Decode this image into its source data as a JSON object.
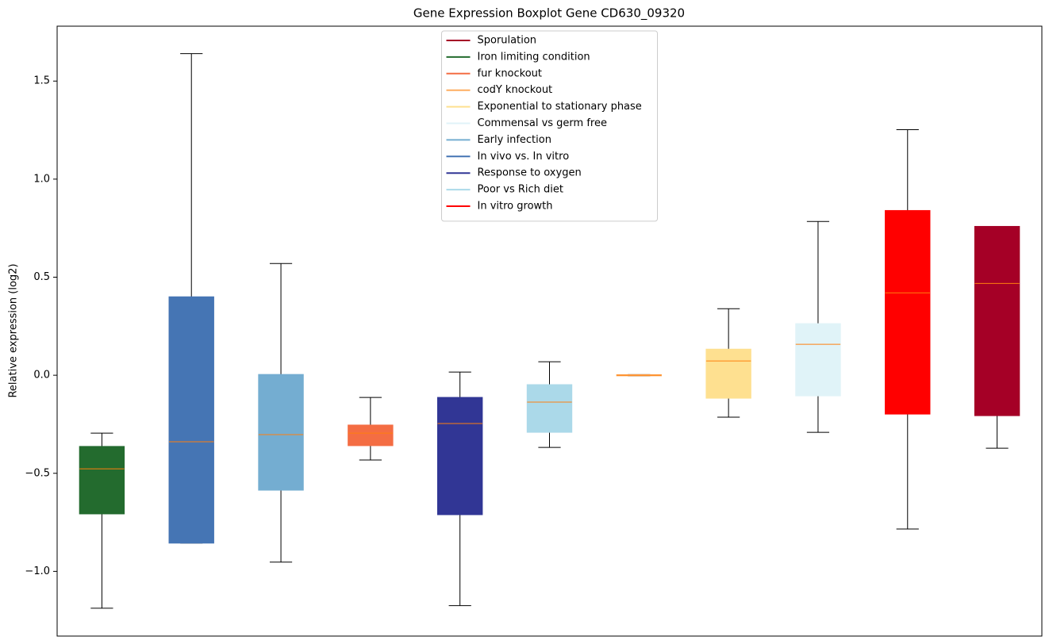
{
  "chart_data": {
    "type": "boxplot",
    "title": "Gene Expression Boxplot Gene CD630_09320",
    "y_label": "Relative expression (log2)",
    "xlim": [
      0.5,
      11.5
    ],
    "ylim": [
      -1.33,
      1.78
    ],
    "yticks": [
      {
        "value": -1.0,
        "label": "−1.0"
      },
      {
        "value": -0.5,
        "label": "−0.5"
      },
      {
        "value": 0.0,
        "label": "0.0"
      },
      {
        "value": 0.5,
        "label": "0.5"
      },
      {
        "value": 1.0,
        "label": "1.0"
      },
      {
        "value": 1.5,
        "label": "1.5"
      }
    ],
    "grid": false,
    "legend_position": "upper center",
    "median_color": "#ff7f0e",
    "series": [
      {
        "name": "Sporulation",
        "color": "#a50026",
        "x": 11,
        "whislo": -0.372,
        "q1": -0.206,
        "med": 0.468,
        "q3": 0.759,
        "whishi": 0.759
      },
      {
        "name": "Iron limiting condition",
        "color": "#236b2e",
        "x": 1,
        "whislo": -1.188,
        "q1": -0.707,
        "med": -0.477,
        "q3": -0.363,
        "whishi": -0.295
      },
      {
        "name": "fur knockout",
        "color": "#f46d43",
        "x": 4,
        "whislo": -0.432,
        "q1": -0.359,
        "med": -0.295,
        "q3": -0.254,
        "whishi": -0.113
      },
      {
        "name": "codY knockout",
        "color": "#fdae61",
        "x": 7,
        "whislo": -0.003,
        "q1": -0.003,
        "med": 0.0,
        "q3": 0.003,
        "whishi": 0.003
      },
      {
        "name": "Exponential to stationary phase",
        "color": "#fee090",
        "x": 8,
        "whislo": -0.214,
        "q1": -0.117,
        "med": 0.073,
        "q3": 0.133,
        "whishi": 0.339
      },
      {
        "name": "Commensal vs germ free",
        "color": "#e0f3f8",
        "x": 9,
        "whislo": -0.291,
        "q1": -0.105,
        "med": 0.158,
        "q3": 0.263,
        "whishi": 0.784
      },
      {
        "name": "Early infection",
        "color": "#74add1",
        "x": 3,
        "whislo": -0.953,
        "q1": -0.586,
        "med": -0.303,
        "q3": 0.004,
        "whishi": 0.57
      },
      {
        "name": "In vivo vs. In vitro",
        "color": "#4575b4",
        "x": 2,
        "whislo": -0.856,
        "q1": -0.856,
        "med": -0.339,
        "q3": 0.4,
        "whishi": 1.64
      },
      {
        "name": "Response to oxygen",
        "color": "#313695",
        "x": 5,
        "whislo": -1.175,
        "q1": -0.711,
        "med": -0.246,
        "q3": -0.113,
        "whishi": 0.016
      },
      {
        "name": "Poor vs Rich diet",
        "color": "#abd9e9",
        "x": 6,
        "whislo": -0.368,
        "q1": -0.291,
        "med": -0.137,
        "q3": -0.048,
        "whishi": 0.069
      },
      {
        "name": "In vitro growth",
        "color": "#ff0000",
        "x": 10,
        "whislo": -0.784,
        "q1": -0.198,
        "med": 0.42,
        "q3": 0.84,
        "whishi": 1.252
      }
    ]
  }
}
